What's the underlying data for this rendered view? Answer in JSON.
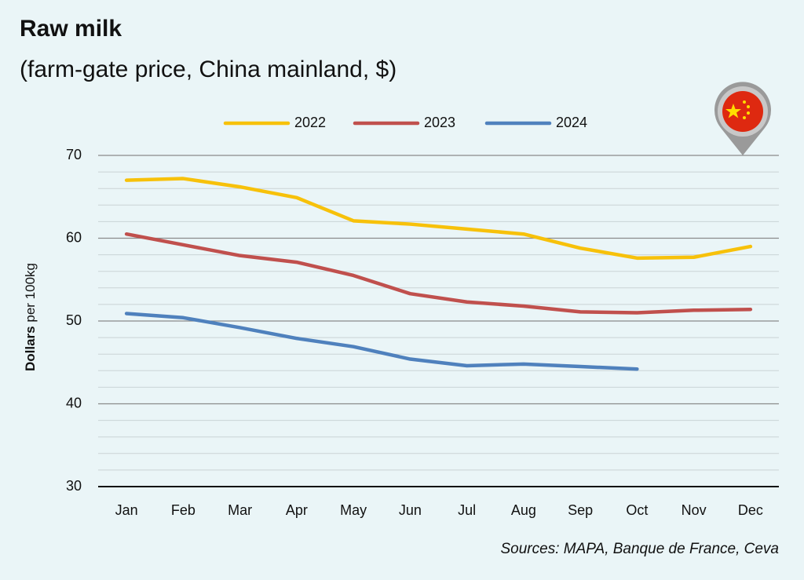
{
  "chart_data": {
    "type": "line",
    "title": "Raw milk",
    "subtitle": "(farm-gate price, China mainland, $)",
    "ylabel_bold": "Dollars",
    "ylabel_rest": "per 100kg",
    "source": "Sources: MAPA, Banque de France, Ceva",
    "categories": [
      "Jan",
      "Feb",
      "Mar",
      "Apr",
      "May",
      "Jun",
      "Jul",
      "Aug",
      "Sep",
      "Oct",
      "Nov",
      "Dec"
    ],
    "series": [
      {
        "name": "2022",
        "color": "#f7c10a",
        "values": [
          67.0,
          67.2,
          66.2,
          64.9,
          62.1,
          61.7,
          61.1,
          60.5,
          58.8,
          57.6,
          57.7,
          59.0
        ]
      },
      {
        "name": "2023",
        "color": "#c0504d",
        "values": [
          60.5,
          59.2,
          57.9,
          57.1,
          55.5,
          53.3,
          52.3,
          51.8,
          51.1,
          51.0,
          51.3,
          51.4
        ]
      },
      {
        "name": "2024",
        "color": "#4f81bd",
        "values": [
          50.9,
          50.4,
          49.2,
          47.9,
          46.9,
          45.4,
          44.6,
          44.8,
          44.5,
          44.2,
          null,
          null
        ]
      }
    ],
    "ylim": [
      30,
      70
    ],
    "yticks": [
      30,
      40,
      50,
      60,
      70
    ],
    "minor_yticks": [
      32,
      34,
      36,
      38,
      42,
      44,
      46,
      48,
      52,
      54,
      56,
      58,
      62,
      64,
      66,
      68
    ],
    "grid": true,
    "legend": "top"
  }
}
